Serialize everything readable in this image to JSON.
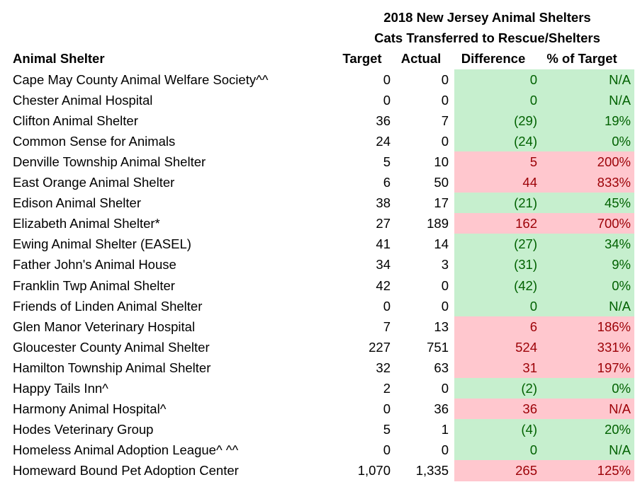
{
  "title": {
    "line1": "2018 New Jersey Animal Shelters",
    "line2": "Cats Transferred to Rescue/Shelters"
  },
  "table": {
    "headers": [
      "Animal Shelter",
      "Target",
      "Actual",
      "Difference",
      "% of Target"
    ],
    "styles": {
      "green": {
        "fill": "#c6efce",
        "text": "#006100"
      },
      "red": {
        "fill": "#ffc7ce",
        "text": "#9c0006"
      }
    },
    "highlight": [
      "green",
      "green",
      "green",
      "green",
      "red",
      "red",
      "green",
      "red",
      "green",
      "green",
      "green",
      "green",
      "red",
      "red",
      "red",
      "green",
      "red",
      "green",
      "green",
      "red"
    ],
    "rows": [
      [
        "Cape May County Animal Welfare Society^^",
        "0",
        "0",
        "0",
        "N/A"
      ],
      [
        "Chester Animal Hospital",
        "0",
        "0",
        "0",
        "N/A"
      ],
      [
        "Clifton Animal Shelter",
        "36",
        "7",
        "(29)",
        "19%"
      ],
      [
        "Common Sense for Animals",
        "24",
        "0",
        "(24)",
        "0%"
      ],
      [
        "Denville Township Animal Shelter",
        "5",
        "10",
        "5",
        "200%"
      ],
      [
        "East Orange Animal Shelter",
        "6",
        "50",
        "44",
        "833%"
      ],
      [
        "Edison Animal Shelter",
        "38",
        "17",
        "(21)",
        "45%"
      ],
      [
        "Elizabeth Animal Shelter*",
        "27",
        "189",
        "162",
        "700%"
      ],
      [
        "Ewing Animal Shelter (EASEL)",
        "41",
        "14",
        "(27)",
        "34%"
      ],
      [
        "Father John's Animal House",
        "34",
        "3",
        "(31)",
        "9%"
      ],
      [
        "Franklin Twp Animal Shelter",
        "42",
        "0",
        "(42)",
        "0%"
      ],
      [
        "Friends of Linden Animal Shelter",
        "0",
        "0",
        "0",
        "N/A"
      ],
      [
        "Glen Manor Veterinary Hospital",
        "7",
        "13",
        "6",
        "186%"
      ],
      [
        "Gloucester County Animal Shelter",
        "227",
        "751",
        "524",
        "331%"
      ],
      [
        "Hamilton Township Animal Shelter",
        "32",
        "63",
        "31",
        "197%"
      ],
      [
        "Happy Tails Inn^",
        "2",
        "0",
        "(2)",
        "0%"
      ],
      [
        "Harmony Animal Hospital^",
        "0",
        "36",
        "36",
        "N/A"
      ],
      [
        "Hodes Veterinary Group",
        "5",
        "1",
        "(4)",
        "20%"
      ],
      [
        "Homeless Animal Adoption League^ ^^",
        "0",
        "0",
        "0",
        "N/A"
      ],
      [
        "Homeward Bound Pet Adoption Center",
        "1,070",
        "1,335",
        "265",
        "125%"
      ]
    ]
  }
}
